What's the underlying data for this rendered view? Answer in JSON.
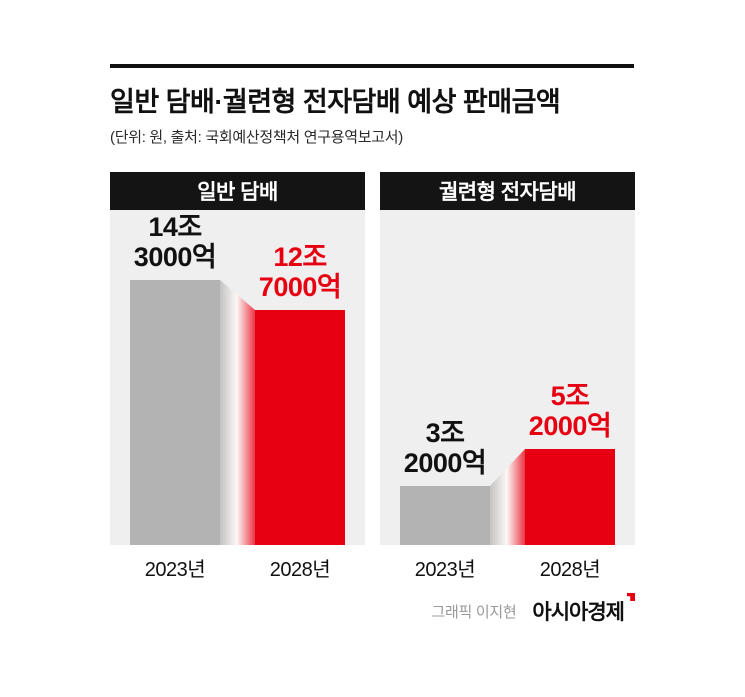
{
  "page": {
    "title": "일반 담배·궐련형 전자담배 예상 판매금액",
    "subtitle": "(단위: 원, 출처: 국회예산정책처 연구용역보고서)"
  },
  "footer": {
    "credit": "그래픽 이지현",
    "brand": "아시아경제"
  },
  "colors": {
    "bar_2023": "#b3b3b3",
    "bar_2028": "#e60012",
    "panel_background": "#efefef",
    "panel_header_background": "#141414",
    "title_color": "#111111"
  },
  "chart_data": [
    {
      "type": "bar",
      "title": "일반 담배",
      "categories": [
        "2023년",
        "2028년"
      ],
      "series": [
        {
          "name": "예상 판매금액(조 원)",
          "values": [
            14.3,
            12.7
          ]
        }
      ],
      "value_labels": [
        [
          "14조",
          "3000억"
        ],
        [
          "12조",
          "7000억"
        ]
      ],
      "bar_colors": [
        "#b3b3b3",
        "#e60012"
      ],
      "unit": "원",
      "ylim": [
        0,
        15.5
      ],
      "grid": false,
      "legend": "none"
    },
    {
      "type": "bar",
      "title": "궐련형 전자담배",
      "categories": [
        "2023년",
        "2028년"
      ],
      "series": [
        {
          "name": "예상 판매금액(조 원)",
          "values": [
            3.2,
            5.2
          ]
        }
      ],
      "value_labels": [
        [
          "3조",
          "2000억"
        ],
        [
          "5조",
          "2000억"
        ]
      ],
      "bar_colors": [
        "#b3b3b3",
        "#e60012"
      ],
      "unit": "원",
      "ylim": [
        0,
        15.5
      ],
      "grid": false,
      "legend": "none"
    }
  ]
}
